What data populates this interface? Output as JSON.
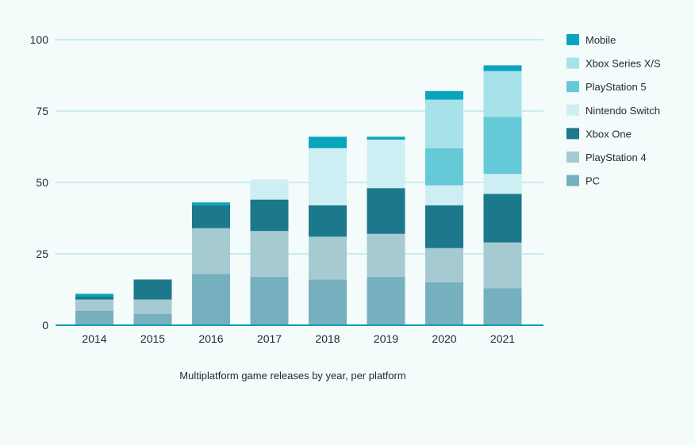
{
  "chart_data": {
    "type": "bar",
    "stacked": true,
    "title": "",
    "caption": "Multiplatform game releases by year, per platform",
    "xlabel": "",
    "ylabel": "",
    "ylim": [
      0,
      100
    ],
    "yticks": [
      0,
      25,
      50,
      75,
      100
    ],
    "grid": true,
    "legend_position": "right",
    "categories": [
      "2014",
      "2015",
      "2016",
      "2017",
      "2018",
      "2019",
      "2020",
      "2021"
    ],
    "series": [
      {
        "name": "PC",
        "color": "#76b0bf",
        "values": [
          5,
          4,
          18,
          17,
          16,
          17,
          15,
          13
        ]
      },
      {
        "name": "PlayStation 4",
        "color": "#a6cad2",
        "values": [
          4,
          5,
          16,
          16,
          15,
          15,
          12,
          16
        ]
      },
      {
        "name": "Xbox One",
        "color": "#1c788b",
        "values": [
          1,
          7,
          8,
          11,
          11,
          16,
          15,
          17
        ]
      },
      {
        "name": "Nintendo Switch",
        "color": "#cdeef2",
        "values": [
          0,
          0,
          0,
          7,
          20,
          17,
          7,
          7
        ]
      },
      {
        "name": "PlayStation 5",
        "color": "#66c9d8",
        "values": [
          0,
          0,
          0,
          0,
          0,
          0,
          13,
          20
        ]
      },
      {
        "name": "Xbox Series X/S",
        "color": "#a7e2ea",
        "values": [
          0,
          0,
          0,
          0,
          0,
          0,
          17,
          16
        ]
      },
      {
        "name": "Mobile",
        "color": "#08a5bc",
        "values": [
          1,
          0,
          1,
          0,
          4,
          1,
          3,
          2
        ]
      }
    ],
    "legend_order": [
      "Mobile",
      "Xbox Series X/S",
      "PlayStation 5",
      "Nintendo Switch",
      "Xbox One",
      "PlayStation 4",
      "PC"
    ],
    "gridline_color": "#9fdde6",
    "axis_color": "#139db2"
  }
}
